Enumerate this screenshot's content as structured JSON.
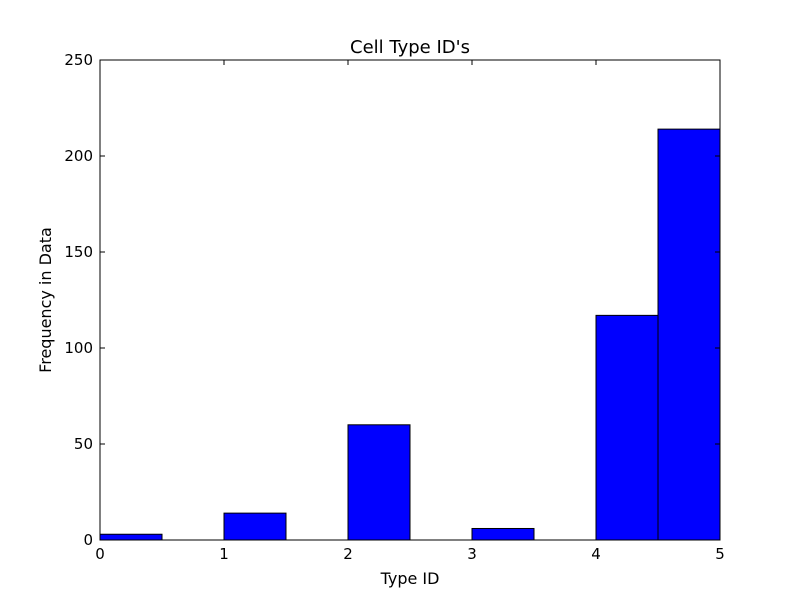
{
  "chart_data": {
    "type": "bar",
    "title": "Cell Type ID's",
    "xlabel": "Type ID",
    "ylabel": "Frequency in Data",
    "xlim": [
      0,
      5
    ],
    "ylim": [
      0,
      250
    ],
    "xticks": [
      "0",
      "1",
      "2",
      "3",
      "4",
      "5"
    ],
    "yticks": [
      "0",
      "50",
      "100",
      "150",
      "200",
      "250"
    ],
    "bins": [
      {
        "x0": 0.0,
        "x1": 0.5,
        "value": 3
      },
      {
        "x0": 0.5,
        "x1": 1.0,
        "value": 0
      },
      {
        "x0": 1.0,
        "x1": 1.5,
        "value": 14
      },
      {
        "x0": 1.5,
        "x1": 2.0,
        "value": 0
      },
      {
        "x0": 2.0,
        "x1": 2.5,
        "value": 60
      },
      {
        "x0": 2.5,
        "x1": 3.0,
        "value": 0
      },
      {
        "x0": 3.0,
        "x1": 3.5,
        "value": 6
      },
      {
        "x0": 3.5,
        "x1": 4.0,
        "value": 0
      },
      {
        "x0": 4.0,
        "x1": 4.5,
        "value": 117
      },
      {
        "x0": 4.5,
        "x1": 5.0,
        "value": 214
      }
    ],
    "bar_color": "#0000ff",
    "grid": false
  }
}
